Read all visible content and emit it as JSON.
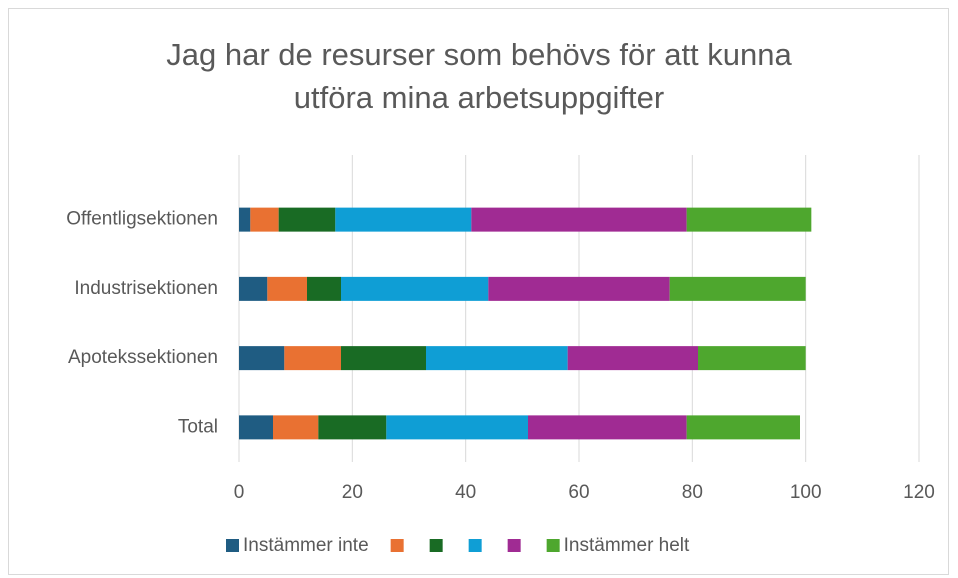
{
  "chart_data": {
    "type": "stacked_bar_horizontal",
    "title": "Jag har de resurser som behövs för att kunna utföra mina arbetsuppgifter",
    "categories": [
      "Offentligsektionen",
      "Industrisektionen",
      "Apotekssektionen",
      "Total"
    ],
    "series": [
      {
        "name": "Instämmer inte",
        "color": "#1f5c82",
        "values": [
          2,
          5,
          8,
          6
        ]
      },
      {
        "color": "#e97132",
        "values": [
          5,
          7,
          10,
          8
        ]
      },
      {
        "color": "#196b24",
        "values": [
          10,
          6,
          15,
          12
        ]
      },
      {
        "color": "#0f9ed5",
        "values": [
          24,
          26,
          25,
          25
        ]
      },
      {
        "color": "#a02b93",
        "values": [
          38,
          32,
          23,
          28
        ]
      },
      {
        "name": "Instämmer helt",
        "color": "#4ea72e",
        "values": [
          22,
          24,
          19,
          20
        ]
      }
    ],
    "xlim": [
      0,
      120
    ],
    "xticks": [
      0,
      20,
      40,
      60,
      80,
      100,
      120
    ],
    "grid": true,
    "legend": "bottom"
  }
}
